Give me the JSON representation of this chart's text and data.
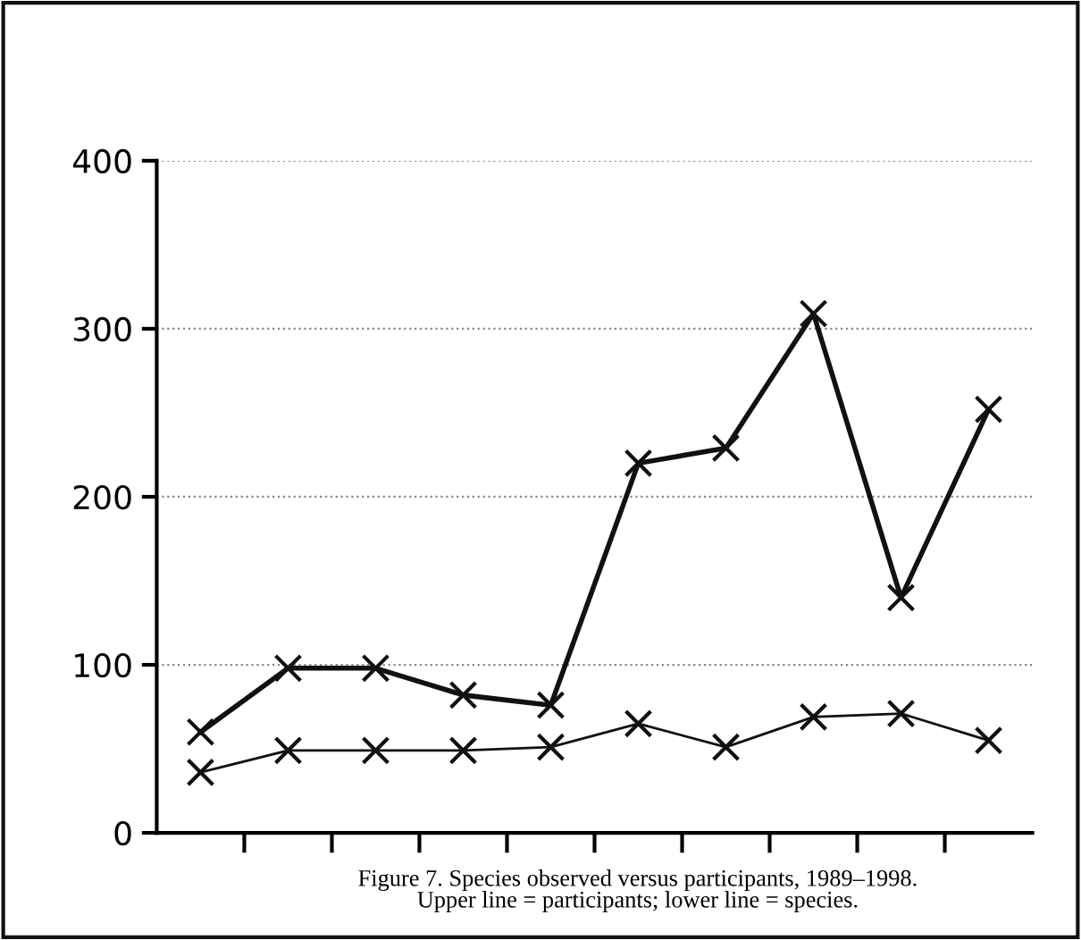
{
  "chart_data": {
    "type": "line",
    "categories": [
      null,
      null,
      null,
      null,
      null,
      null,
      null,
      null,
      null,
      null
    ],
    "series": [
      {
        "color": "#111111",
        "values": [
          60,
          98,
          98,
          82,
          76,
          220,
          229,
          309,
          140,
          252
        ]
      },
      {
        "color": "#111111",
        "values": [
          36,
          49,
          49,
          49,
          51,
          65,
          51,
          69,
          71,
          55
        ]
      }
    ],
    "ylim": [
      0,
      400
    ],
    "yticks": [
      0,
      100,
      200,
      300,
      400
    ],
    "grid": "y",
    "marker": "cross",
    "annotations": [
      "Figure 7. Species observed versus participants, 1989–1998.\nUpper line = participants; lower line = species."
    ]
  }
}
